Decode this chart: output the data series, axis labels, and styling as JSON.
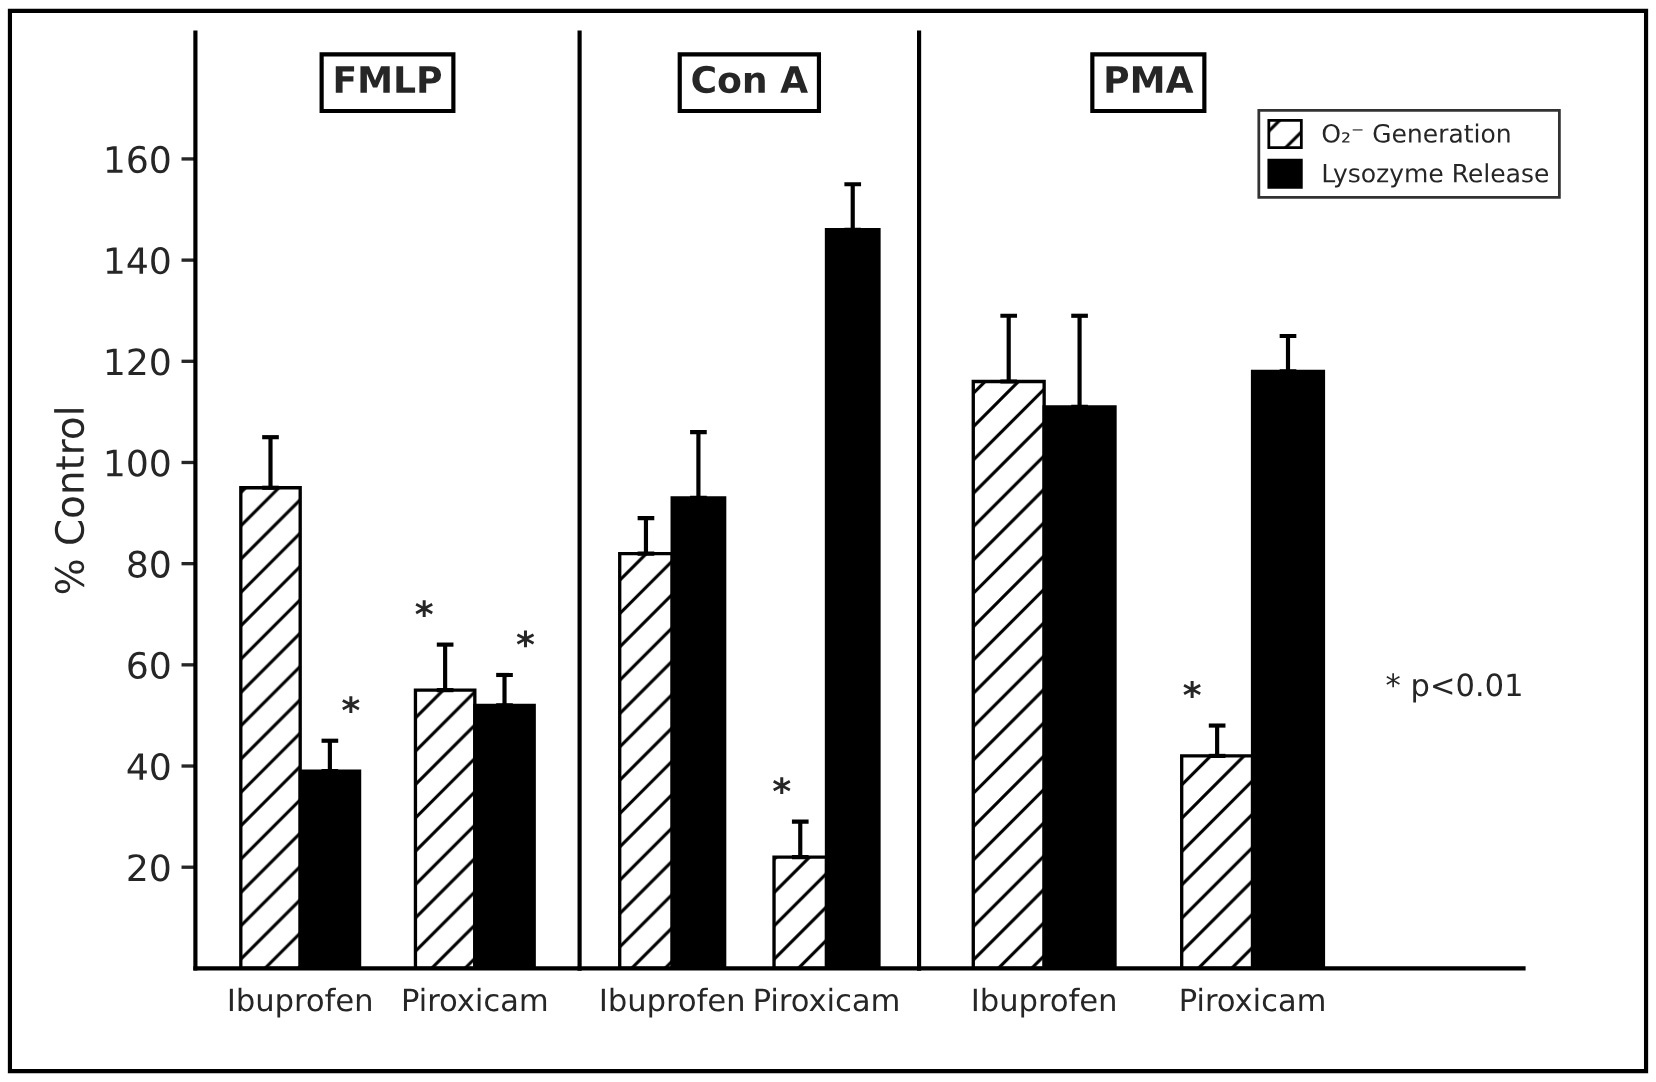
{
  "chart_data": [
    {
      "type": "bar",
      "title": "FMLP",
      "ylabel": "% Control",
      "categories": [
        "Ibuprofen",
        "Piroxicam"
      ],
      "ylim": [
        0,
        185
      ],
      "yticks": [
        20,
        40,
        60,
        80,
        100,
        120,
        140,
        160
      ],
      "grid": false,
      "series": [
        {
          "color": "#ffffff",
          "values": [
            95,
            55
          ],
          "errors": [
            10,
            9
          ],
          "value_labels": [
            null,
            "*"
          ]
        },
        {
          "color": "#000000",
          "values": [
            39,
            52
          ],
          "errors": [
            6,
            6
          ],
          "value_labels": [
            "*",
            "*"
          ]
        }
      ]
    },
    {
      "type": "bar",
      "title": "Con A",
      "categories": [
        "Ibuprofen",
        "Piroxicam"
      ],
      "ylim": [
        0,
        185
      ],
      "yticks": [
        20,
        40,
        60,
        80,
        100,
        120,
        140,
        160
      ],
      "tick_labels": "x",
      "grid": false,
      "series": [
        {
          "color": "#ffffff",
          "values": [
            82,
            22
          ],
          "errors": [
            7,
            7
          ],
          "value_labels": [
            null,
            "*"
          ]
        },
        {
          "color": "#000000",
          "values": [
            93,
            146
          ],
          "errors": [
            13,
            9
          ],
          "value_labels": [
            null,
            null
          ]
        }
      ]
    },
    {
      "type": "bar",
      "title": "PMA",
      "categories": [
        "Ibuprofen",
        "Piroxicam"
      ],
      "ylim": [
        0,
        185
      ],
      "yticks": [
        20,
        40,
        60,
        80,
        100,
        120,
        140,
        160
      ],
      "tick_labels": "x",
      "grid": false,
      "legend": "top right",
      "annotations": [
        "* p<0.01"
      ],
      "series": [
        {
          "name": "O₂⁻ Generation",
          "color": "#ffffff",
          "values": [
            116,
            42
          ],
          "errors": [
            13,
            6
          ],
          "value_labels": [
            null,
            "*"
          ]
        },
        {
          "name": "Lysozyme Release",
          "color": "#000000",
          "values": [
            111,
            118
          ],
          "errors": [
            18,
            7
          ],
          "value_labels": [
            null,
            null
          ]
        }
      ]
    }
  ]
}
